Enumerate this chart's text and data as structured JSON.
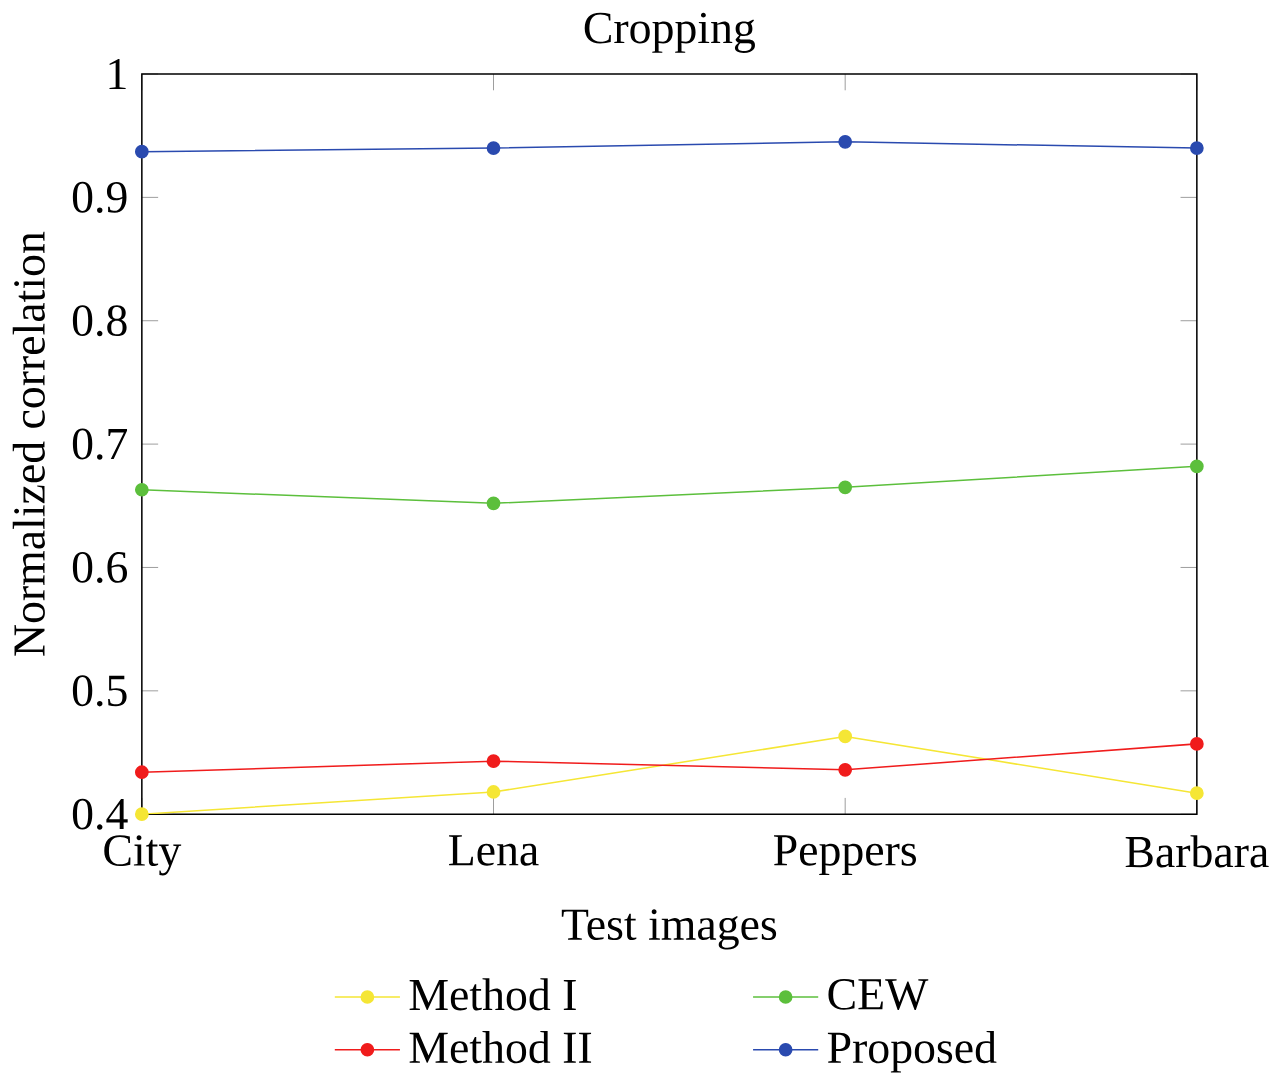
{
  "chart_data": {
    "type": "line",
    "title": "Cropping",
    "xlabel": "Test images",
    "ylabel": "Normalized correlation",
    "categories": [
      "City",
      "Lena",
      "Peppers",
      "Barbara"
    ],
    "series": [
      {
        "name": "Method I",
        "color": "#f5e635",
        "values": [
          0.4,
          0.418,
          0.463,
          0.417
        ]
      },
      {
        "name": "Method II",
        "color": "#f01c1c",
        "values": [
          0.434,
          0.443,
          0.436,
          0.457
        ]
      },
      {
        "name": "CEW",
        "color": "#5cbf3c",
        "values": [
          0.663,
          0.652,
          0.665,
          0.682
        ]
      },
      {
        "name": "Proposed",
        "color": "#2a4aaf",
        "values": [
          0.937,
          0.94,
          0.945,
          0.94
        ]
      }
    ],
    "ylim": [
      0.4,
      1
    ],
    "yticks": [
      0.4,
      0.5,
      0.6,
      0.7,
      0.8,
      0.9,
      1
    ],
    "grid": false,
    "legend": "bottom",
    "marker": "circle",
    "line_style": "solid"
  }
}
